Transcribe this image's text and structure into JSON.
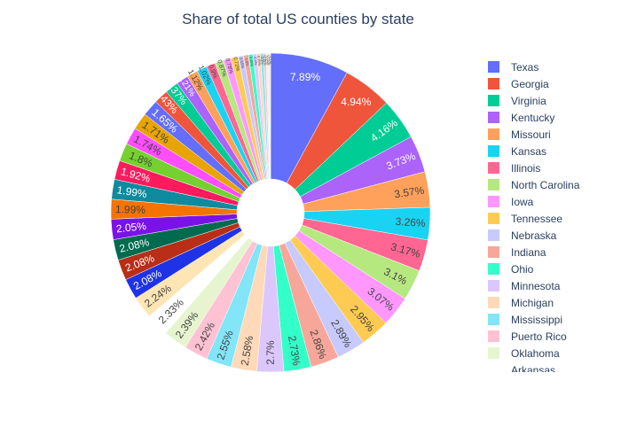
{
  "chart_data": {
    "type": "pie",
    "title": "Share of total US counties by state",
    "hole": true,
    "legend_position": "right",
    "slices": [
      {
        "label": "Texas",
        "value": 7.89,
        "color": "#636efa"
      },
      {
        "label": "Georgia",
        "value": 4.94,
        "color": "#EF553B"
      },
      {
        "label": "Virginia",
        "value": 4.16,
        "color": "#00cc96"
      },
      {
        "label": "Kentucky",
        "value": 3.73,
        "color": "#ab63fa"
      },
      {
        "label": "Missouri",
        "value": 3.57,
        "color": "#FFA15A"
      },
      {
        "label": "Kansas",
        "value": 3.26,
        "color": "#19d3f3"
      },
      {
        "label": "Illinois",
        "value": 3.17,
        "color": "#FF6692"
      },
      {
        "label": "North Carolina",
        "value": 3.1,
        "color": "#B6E880"
      },
      {
        "label": "Iowa",
        "value": 3.07,
        "color": "#FF97FF"
      },
      {
        "label": "Tennessee",
        "value": 2.95,
        "color": "#FECB52"
      },
      {
        "label": "Nebraska",
        "value": 2.89,
        "color": "#c6cafd"
      },
      {
        "label": "Indiana",
        "value": 2.86,
        "color": "#f7a799"
      },
      {
        "label": "Ohio",
        "value": 2.73,
        "color": "#33ffc9"
      },
      {
        "label": "Minnesota",
        "value": 2.7,
        "color": "#dcc7fd"
      },
      {
        "label": "Michigan",
        "value": 2.58,
        "color": "#ffd9b8"
      },
      {
        "label": "Mississippi",
        "value": 2.55,
        "color": "#82e5f8"
      },
      {
        "label": "Puerto Rico",
        "value": 2.42,
        "color": "#ffc2d3"
      },
      {
        "label": "Oklahoma",
        "value": 2.39,
        "color": "#e6f5d0"
      },
      {
        "label": "Arkansas",
        "value": 2.33,
        "color": "#ffffff"
      },
      {
        "label": "",
        "value": 2.24,
        "color": "#FFE5B4"
      },
      {
        "label": "",
        "value": 2.08,
        "color": "#1f33e6"
      },
      {
        "label": "",
        "value": 2.08,
        "color": "#b82e17"
      },
      {
        "label": "",
        "value": 2.08,
        "color": "#006b4f"
      },
      {
        "label": "",
        "value": 2.05,
        "color": "#7a12e8"
      },
      {
        "label": "",
        "value": 1.99,
        "color": "#f57300"
      },
      {
        "label": "",
        "value": 1.99,
        "color": "#0f8a9e"
      },
      {
        "label": "",
        "value": 1.92,
        "color": "#ff1a5e"
      },
      {
        "label": "",
        "value": 1.8,
        "color": "#74d130"
      },
      {
        "label": "",
        "value": 1.74,
        "color": "#ff4dff"
      },
      {
        "label": "",
        "value": 1.71,
        "color": "#e8a400"
      },
      {
        "label": "",
        "value": 1.65,
        "color": "#636efa"
      },
      {
        "label": "",
        "value": 1.43,
        "color": "#EF553B"
      },
      {
        "label": "",
        "value": 1.37,
        "color": "#00cc96"
      },
      {
        "label": "",
        "value": 1.21,
        "color": "#ab63fa"
      },
      {
        "label": "",
        "value": 1.12,
        "color": "#FFA15A"
      },
      {
        "label": "",
        "value": 1.02,
        "color": "#19d3f3"
      },
      {
        "label": "",
        "value": 0.9,
        "color": "#FF6692"
      },
      {
        "label": "",
        "value": 0.87,
        "color": "#B6E880"
      },
      {
        "label": "",
        "value": 0.78,
        "color": "#FF97FF"
      },
      {
        "label": "",
        "value": 0.72,
        "color": "#FECB52"
      },
      {
        "label": "",
        "value": 0.55,
        "color": "#c6cafd"
      },
      {
        "label": "",
        "value": 0.5,
        "color": "#f7a799"
      },
      {
        "label": "",
        "value": 0.45,
        "color": "#33ffc9"
      },
      {
        "label": "",
        "value": 0.4,
        "color": "#dcc7fd"
      },
      {
        "label": "",
        "value": 0.35,
        "color": "#ffd9b8"
      },
      {
        "label": "",
        "value": 0.3,
        "color": "#82e5f8"
      },
      {
        "label": "",
        "value": 0.25,
        "color": "#ffc2d3"
      },
      {
        "label": "",
        "value": 0.2,
        "color": "#e6f5d0"
      },
      {
        "label": "",
        "value": 0.15,
        "color": "#e0e0e0"
      },
      {
        "label": "",
        "value": 0.1,
        "color": "#FFE5B4"
      }
    ]
  }
}
